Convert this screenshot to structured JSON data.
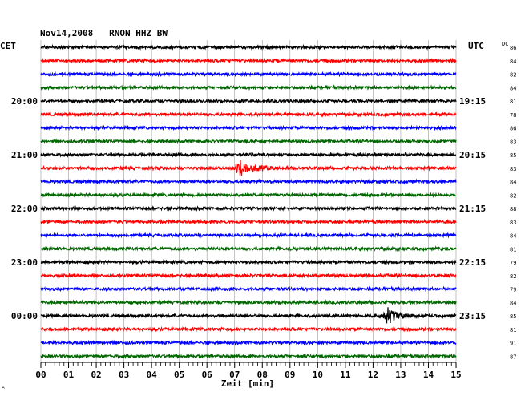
{
  "chart_data": {
    "type": "line",
    "title": "Nov14,2008   RNON HHZ BW",
    "left_timezone": "CET",
    "right_timezone": "UTC",
    "dc_label": "DC",
    "xlabel": "Zeit [min]",
    "xlim": [
      0,
      15
    ],
    "x_ticks": [
      "00",
      "01",
      "02",
      "03",
      "04",
      "05",
      "06",
      "07",
      "08",
      "09",
      "10",
      "11",
      "12",
      "13",
      "14",
      "15"
    ],
    "grid": true,
    "row_minutes": 15,
    "left_time_labels": [
      {
        "row": 4,
        "label": "20:00"
      },
      {
        "row": 8,
        "label": "21:00"
      },
      {
        "row": 12,
        "label": "22:00"
      },
      {
        "row": 16,
        "label": "23:00"
      },
      {
        "row": 20,
        "label": "00:00"
      }
    ],
    "right_time_labels": [
      {
        "row": 4,
        "label": "19:15"
      },
      {
        "row": 8,
        "label": "20:15"
      },
      {
        "row": 12,
        "label": "21:15"
      },
      {
        "row": 16,
        "label": "22:15"
      },
      {
        "row": 20,
        "label": "23:15"
      }
    ],
    "dc_values": [
      "86",
      "84",
      "82",
      "84",
      "81",
      "78",
      "86",
      "83",
      "85",
      "83",
      "84",
      "82",
      "88",
      "83",
      "84",
      "81",
      "79",
      "82",
      "79",
      "84",
      "85",
      "81",
      "91",
      "87"
    ],
    "trace_colors": [
      "#000000",
      "#ff0000",
      "#0000ff",
      "#006600"
    ],
    "events": [
      {
        "row": 9,
        "minute": 7.2,
        "amplitude": 2.4,
        "decay_min": 1.4
      },
      {
        "row": 20,
        "minute": 12.55,
        "amplitude": 2.7,
        "decay_min": 0.9
      }
    ],
    "footer_mark": "^"
  }
}
